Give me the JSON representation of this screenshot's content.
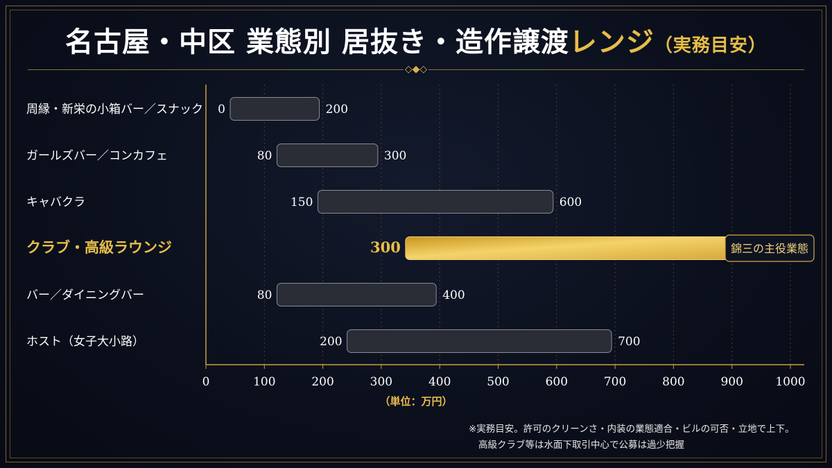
{
  "title": {
    "main": "名古屋・中区 業態別 居抜き・造作譲渡",
    "accent": "レンジ",
    "sub": "（実務目安）"
  },
  "unit_label": "（単位：万円）",
  "notes": [
    "※実務目安。許可のクリーンさ・内装の業態適合・ビルの可否・立地で上下。",
    "高級クラブ等は水面下取引中心で公募は過少把握"
  ],
  "colors": {
    "background": "#0b0f1c",
    "gold": "#e7bd48",
    "bar": "#2a2c36",
    "bar_border": "#8a8c96",
    "text": "#ffffff"
  },
  "chart_data": {
    "type": "bar",
    "orientation": "horizontal-range",
    "categories": [
      "周縁・新栄の小箱バー／スナック",
      "ガールズバー／コンカフェ",
      "キャバクラ",
      "クラブ・高級ラウンジ",
      "バー／ダイニングバー",
      "ホスト（女子大小路）"
    ],
    "ranges": [
      [
        0,
        200
      ],
      [
        80,
        300
      ],
      [
        150,
        600
      ],
      [
        300,
        900
      ],
      [
        80,
        400
      ],
      [
        200,
        700
      ]
    ],
    "highlight_index": 3,
    "highlight_tag": "錦三の主役業態",
    "xlim": [
      0,
      1000
    ],
    "xticks": [
      0,
      100,
      200,
      300,
      400,
      500,
      600,
      700,
      800,
      900,
      1000
    ],
    "xlabel": "（単位：万円）",
    "grid": "vertical-dotted"
  }
}
